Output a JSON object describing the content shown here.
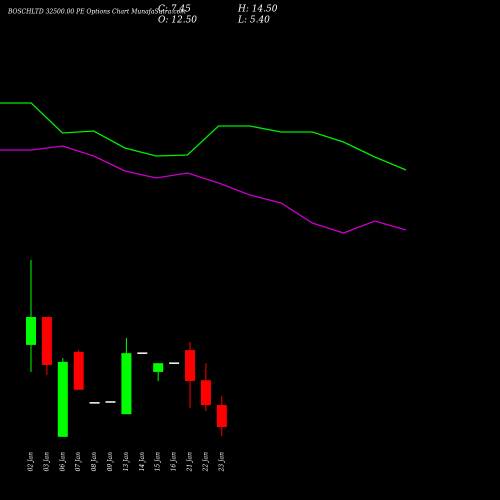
{
  "header": {
    "title": "BOSCHLTD 32500.00 PE Options Chart MunafaSutra.com",
    "ohlc": [
      "C: 7.45",
      "H: 14.50",
      "O: 12.50",
      "L: 5.40"
    ]
  },
  "chart_data": [
    {
      "type": "line",
      "ylim": [
        0,
        250
      ],
      "series": [
        {
          "color": "#00ee00",
          "values": [
            147,
            147,
            117,
            119,
            102,
            94,
            95,
            124,
            124,
            118,
            118,
            108,
            93,
            80
          ]
        },
        {
          "color": "#cc00cc",
          "values": [
            100,
            100,
            104,
            94,
            79,
            72,
            77,
            67,
            55,
            47,
            27,
            17,
            29,
            20
          ]
        }
      ]
    },
    {
      "type": "candlestick",
      "ylim": [
        0,
        50
      ],
      "up_color": "#00ff00",
      "down_color": "#ff0000",
      "flat_color": "#ffffff",
      "categories": [
        "02 Jan",
        "03 Jan",
        "06 Jan",
        "07 Jan",
        "08 Jan",
        "09 Jan",
        "13 Jan",
        "14 Jan",
        "15 Jan",
        "16 Jan",
        "21 Jan",
        "22 Jan",
        "23 Jan"
      ],
      "open": [
        26.3,
        32.7,
        5.2,
        24.7,
        13.0,
        13.2,
        10.4,
        24.4,
        20.1,
        22.1,
        25.1,
        18.2,
        12.5
      ],
      "high": [
        45.8,
        32.7,
        23.3,
        25.1,
        13.0,
        13.2,
        27.9,
        24.4,
        22.1,
        22.1,
        27.0,
        22.1,
        14.5
      ],
      "low": [
        20.1,
        19.4,
        5.2,
        16.0,
        13.0,
        13.2,
        10.4,
        24.4,
        18.0,
        22.1,
        11.8,
        11.1,
        5.4
      ],
      "close": [
        32.7,
        21.7,
        22.4,
        16.0,
        13.0,
        13.2,
        24.4,
        24.4,
        22.1,
        22.1,
        18.0,
        12.5,
        7.45
      ]
    }
  ]
}
